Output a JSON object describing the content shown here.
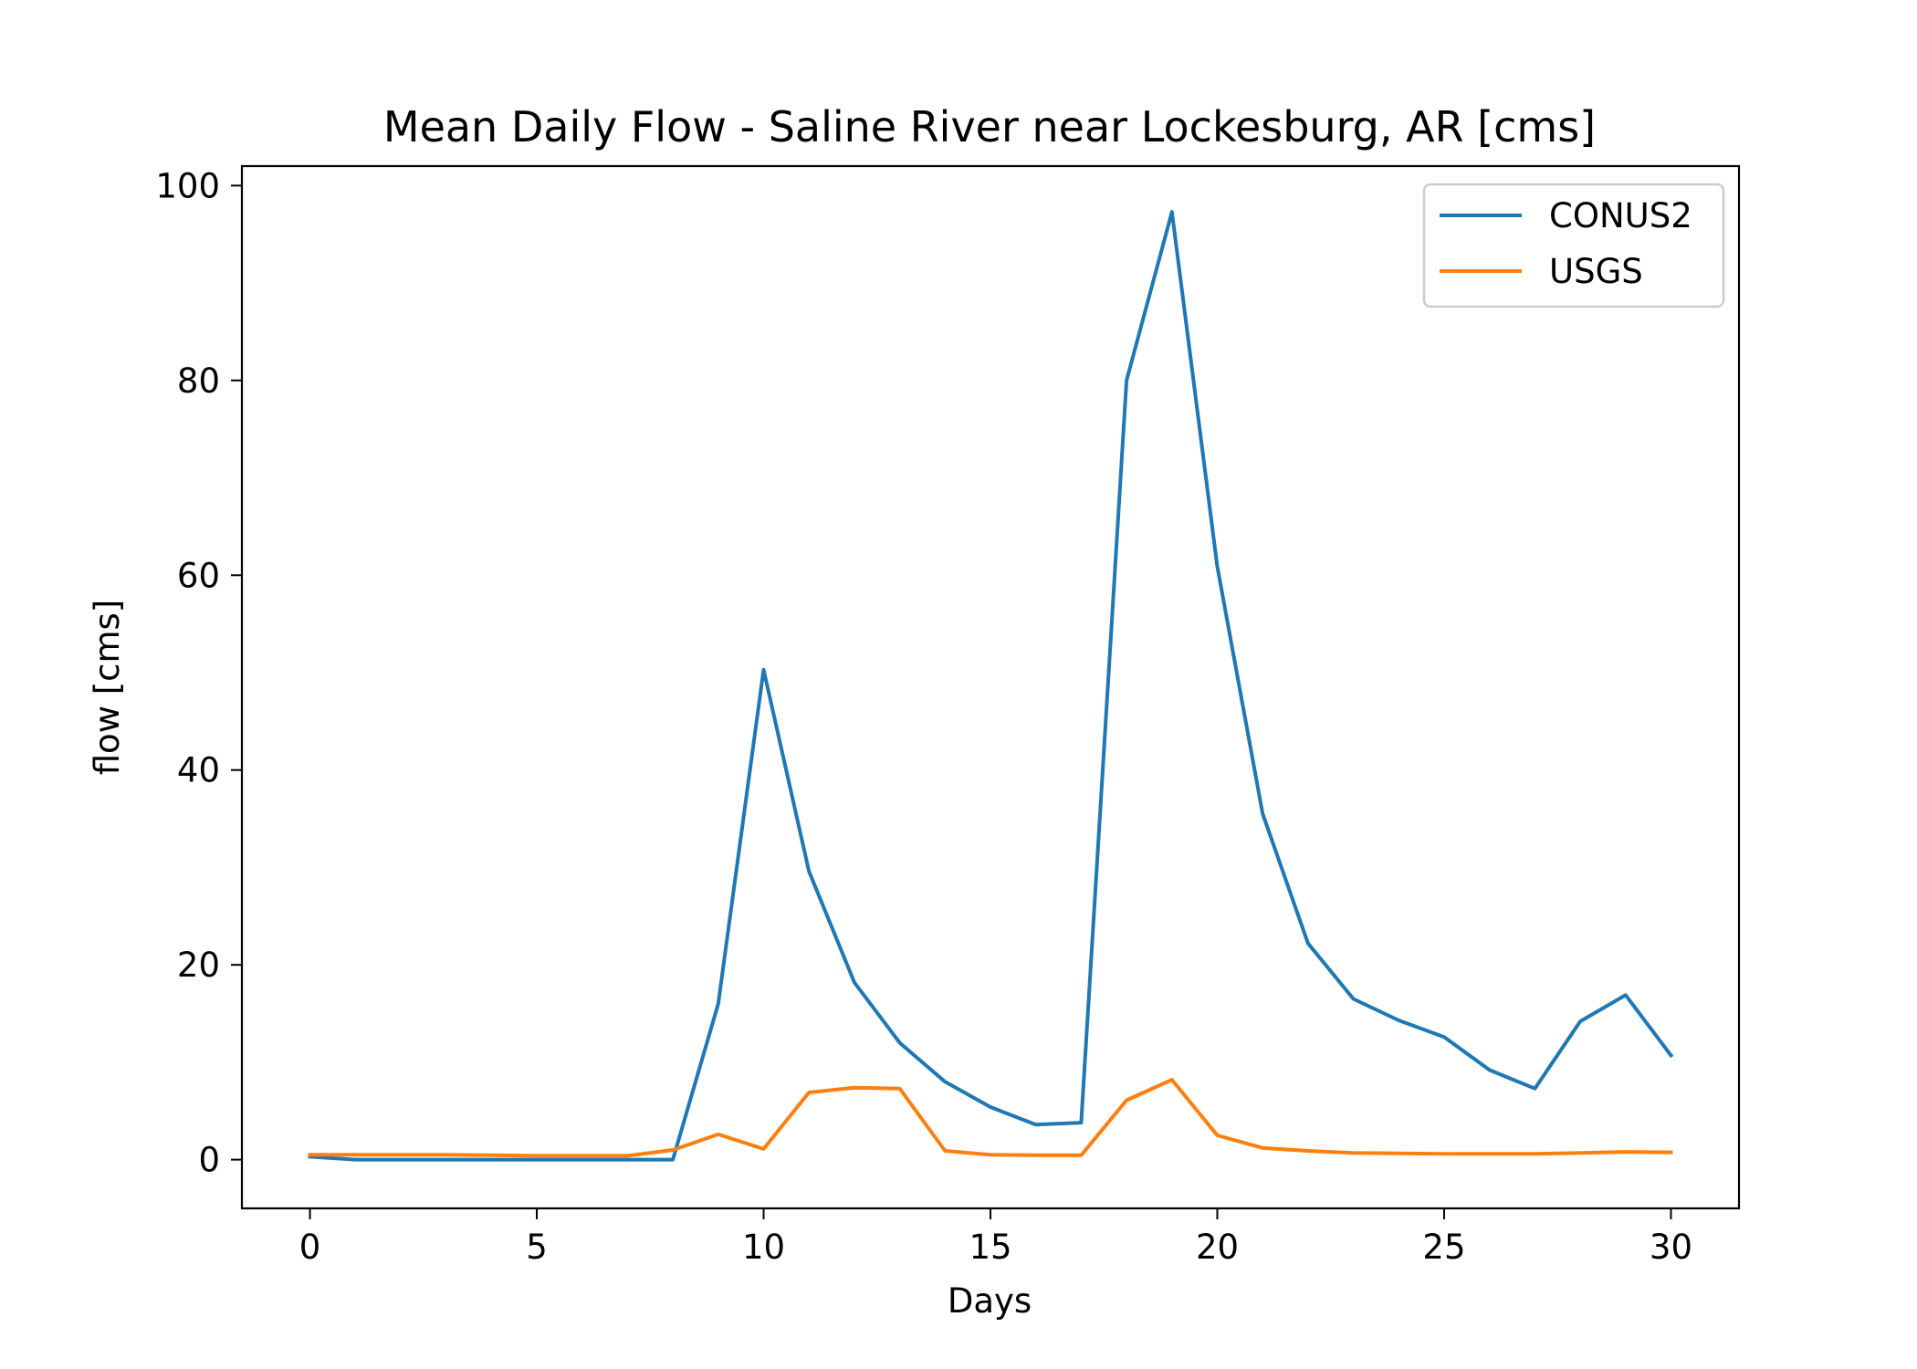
{
  "chart_data": {
    "type": "line",
    "title": "Mean Daily Flow - Saline River near Lockesburg, AR [cms]",
    "xlabel": "Days",
    "ylabel": "flow [cms]",
    "xlim": [
      -1.5,
      31.5
    ],
    "ylim": [
      -5,
      102
    ],
    "xticks": [
      0,
      5,
      10,
      15,
      20,
      25,
      30
    ],
    "yticks": [
      0,
      20,
      40,
      60,
      80,
      100
    ],
    "grid": false,
    "legend_position": "top-right",
    "x": [
      0,
      1,
      2,
      3,
      4,
      5,
      6,
      7,
      8,
      9,
      10,
      11,
      12,
      13,
      14,
      15,
      16,
      17,
      18,
      19,
      20,
      21,
      22,
      23,
      24,
      25,
      26,
      27,
      28,
      29,
      30
    ],
    "series": [
      {
        "name": "CONUS2",
        "color": "#1f77b4",
        "values": [
          0.3,
          0.0,
          0.0,
          0.0,
          0.0,
          0.0,
          0.0,
          0.0,
          0.0,
          16.0,
          50.3,
          29.6,
          18.2,
          12.0,
          8.0,
          5.4,
          3.6,
          3.8,
          80.0,
          97.3,
          60.9,
          35.5,
          22.2,
          16.5,
          14.3,
          12.6,
          9.2,
          7.3,
          14.2,
          16.9,
          10.7
        ]
      },
      {
        "name": "USGS",
        "color": "#ff7f0e",
        "values": [
          0.5,
          0.5,
          0.5,
          0.5,
          0.45,
          0.4,
          0.4,
          0.4,
          1.0,
          2.6,
          1.1,
          6.9,
          7.4,
          7.3,
          0.9,
          0.5,
          0.45,
          0.45,
          6.1,
          8.2,
          2.5,
          1.2,
          0.9,
          0.7,
          0.65,
          0.6,
          0.6,
          0.6,
          0.7,
          0.8,
          0.75
        ]
      }
    ]
  }
}
